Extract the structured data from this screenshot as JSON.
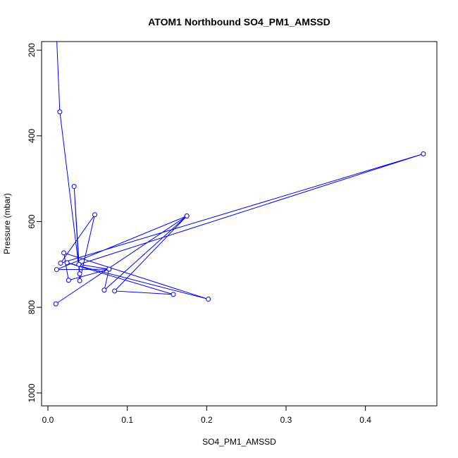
{
  "chart_data": {
    "type": "line",
    "title": "ATOM1 Northbound SO4_PM1_AMSSD",
    "xlabel": "SO4_PM1_AMSSD",
    "ylabel": "Pressure (mbar)",
    "xlim": [
      -0.008,
      0.49
    ],
    "ylim": [
      1030,
      180
    ],
    "y_reversed": true,
    "x_ticks": [
      0,
      0.1,
      0.2,
      0.3,
      0.4
    ],
    "x_tick_labels": [
      "0.0",
      "0.1",
      "0.2",
      "0.3",
      "0.4"
    ],
    "y_ticks": [
      200,
      400,
      600,
      800,
      1000
    ],
    "y_tick_labels": [
      "200",
      "400",
      "600",
      "800",
      "1000"
    ],
    "grid": false,
    "color": "#0000ff",
    "series": [
      {
        "marker": "open-circle",
        "line_start": [
          0.0105,
          150
        ],
        "points": [
          {
            "x": 0.015,
            "y": 344
          },
          {
            "x": 0.04,
            "y": 722
          },
          {
            "x": 0.033,
            "y": 518
          },
          {
            "x": 0.04,
            "y": 738
          },
          {
            "x": 0.059,
            "y": 584
          },
          {
            "x": 0.016,
            "y": 697
          },
          {
            "x": 0.473,
            "y": 442
          },
          {
            "x": 0.039,
            "y": 700
          },
          {
            "x": 0.077,
            "y": 711
          },
          {
            "x": 0.011,
            "y": 712
          },
          {
            "x": 0.175,
            "y": 587
          },
          {
            "x": 0.071,
            "y": 760
          },
          {
            "x": 0.077,
            "y": 711
          },
          {
            "x": 0.026,
            "y": 737
          },
          {
            "x": 0.02,
            "y": 673
          },
          {
            "x": 0.202,
            "y": 781
          },
          {
            "x": 0.024,
            "y": 696
          },
          {
            "x": 0.158,
            "y": 770
          },
          {
            "x": 0.084,
            "y": 762
          },
          {
            "x": 0.175,
            "y": 587
          },
          {
            "x": 0.01,
            "y": 792
          }
        ]
      }
    ]
  }
}
